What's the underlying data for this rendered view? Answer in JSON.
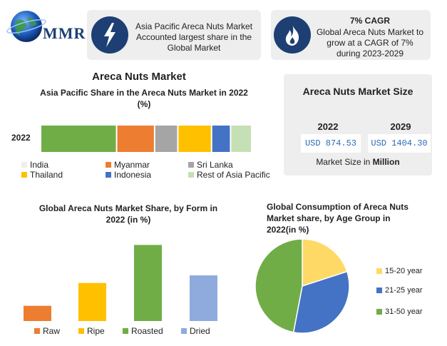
{
  "brand": {
    "logo_text": "MMR"
  },
  "cards": [
    {
      "text": "Asia Pacific Areca Nuts Market Accounted largest share in the Global Market"
    },
    {
      "heading": "7% CAGR",
      "text": "Global Areca Nuts Market to grow at a CAGR of 7% during 2023-2029"
    }
  ],
  "icons": [
    "lightning-icon",
    "flame-icon"
  ],
  "colors": {
    "india": "#eeeeee",
    "myanmar": "#ed7d31",
    "sri_lanka": "#a5a5a5",
    "thailand": "#ffc000",
    "indonesia": "#4472c4",
    "rest": "#c5e0b4",
    "raw": "#ed7d31",
    "ripe": "#ffc000",
    "roasted": "#70ad47",
    "dried": "#8faadc",
    "g1": "#ffd966",
    "g2": "#4472c4",
    "g3": "#70ad47",
    "navy": "#1d3f73"
  },
  "market_size": {
    "title": "Areca Nuts Market Size",
    "years": [
      "2022",
      "2029"
    ],
    "values": [
      "USD 874.53",
      "USD 1404.30"
    ],
    "unit_prefix": "Market Size in ",
    "unit": "Million"
  },
  "chart_data": [
    {
      "type": "bar",
      "orientation": "horizontal-stacked",
      "title": "Areca Nuts Market",
      "subtitle": "Asia Pacific Share in the Areca Nuts Market in 2022 (%)",
      "categories": [
        "2022"
      ],
      "series": [
        {
          "name": "India",
          "values": [
            36
          ]
        },
        {
          "name": "Myanmar",
          "values": [
            18
          ]
        },
        {
          "name": "Sri Lanka",
          "values": [
            11
          ]
        },
        {
          "name": "Thailand",
          "values": [
            16
          ]
        },
        {
          "name": "Indonesia",
          "values": [
            9
          ]
        },
        {
          "name": "Rest of Asia Pacific",
          "values": [
            10
          ]
        }
      ],
      "legend": "bottom"
    },
    {
      "type": "bar",
      "title": "Global Areca Nuts Market Share, by Form  in 2022 (in %)",
      "categories": [
        "Raw",
        "Ripe",
        "Roasted",
        "Dried"
      ],
      "values": [
        8,
        20,
        40,
        24
      ],
      "ylim": [
        0,
        42
      ],
      "legend": "bottom"
    },
    {
      "type": "pie",
      "title": "Global Consumption of Areca Nuts Market share, by Age Group in 2022(in %)",
      "labels": [
        "15-20 year",
        "21-25 year",
        "31-50 year"
      ],
      "values": [
        20,
        33,
        47
      ],
      "legend": "right"
    }
  ]
}
